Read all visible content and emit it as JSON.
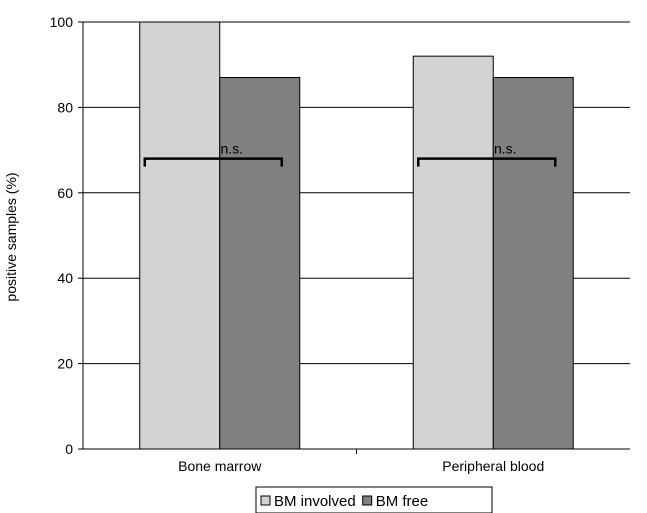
{
  "chart_data": {
    "type": "bar",
    "categories": [
      "Bone marrow",
      "Peripheral blood"
    ],
    "series": [
      {
        "name": "BM involved",
        "values": [
          100,
          92
        ],
        "color": "#d3d3d3"
      },
      {
        "name": "BM free",
        "values": [
          87,
          87
        ],
        "color": "#808080"
      }
    ],
    "ylabel": "positive samples (%)",
    "ylim": [
      0,
      100
    ],
    "yticks": [
      0,
      20,
      40,
      60,
      80,
      100
    ],
    "grid": true,
    "legend": "bottom",
    "annotations": [
      {
        "category": "Bone marrow",
        "text": "n.s.",
        "y": 68
      },
      {
        "category": "Peripheral blood",
        "text": "n.s.",
        "y": 68
      }
    ]
  }
}
